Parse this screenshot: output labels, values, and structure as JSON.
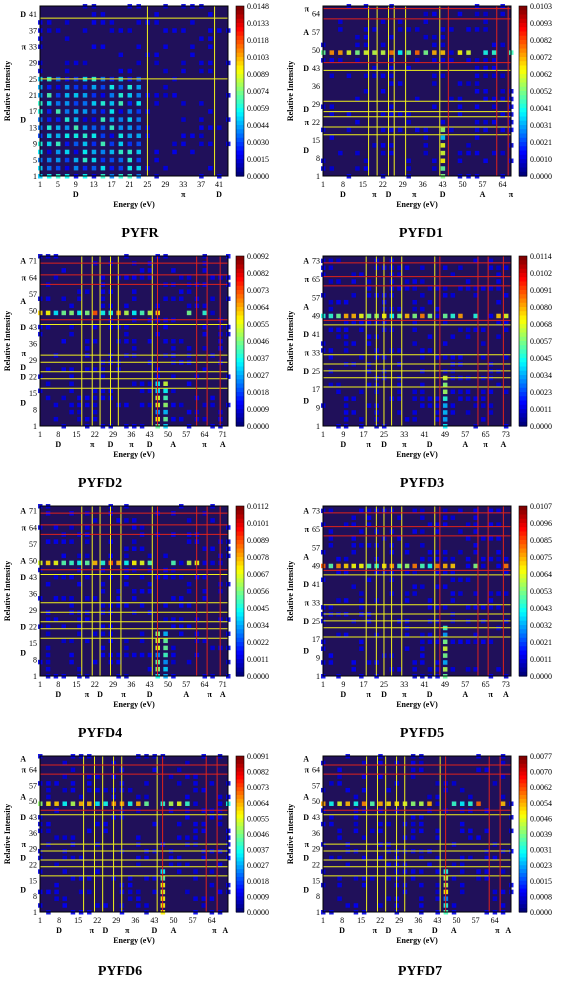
{
  "chart_data": [
    {
      "type": "heatmap",
      "panel": "PYFR",
      "title": "PYFR",
      "xlabel": "Energy (eV)",
      "ylabel": "Relative Intensity",
      "xlim": [
        1,
        43
      ],
      "ylim": [
        1,
        43
      ],
      "x_ticks": [
        "1",
        "5",
        "9",
        "13",
        "17",
        "21",
        "25",
        "29",
        "33",
        "37",
        "41"
      ],
      "y_ticks": [
        "1",
        "5",
        "9",
        "13",
        "17",
        "21",
        "25",
        "29",
        "33",
        "37",
        "41"
      ],
      "y_ticks_shown": [
        "1",
        "5",
        "9",
        "13",
        "17",
        "21",
        "25",
        "29",
        "33",
        "37",
        "41"
      ],
      "x_groups": [
        {
          "label": "D",
          "at": 9
        },
        {
          "label": "π",
          "at": 33
        },
        {
          "label": "D",
          "at": 41
        }
      ],
      "y_groups": [
        {
          "label": "D",
          "at": 15
        },
        {
          "label": "π",
          "at": 33
        },
        {
          "label": "D",
          "at": 41
        }
      ],
      "colorbar": [
        "0.0148",
        "0.0133",
        "0.0118",
        "0.0103",
        "0.0089",
        "0.0074",
        "0.0059",
        "0.0044",
        "0.0030",
        "0.0015",
        "0.0000"
      ],
      "grid_lines_yellow": [
        25,
        40
      ],
      "grid_lines_red": [],
      "hot_x": [
        1,
        24
      ]
    },
    {
      "type": "heatmap",
      "panel": "PYFD1",
      "title": "PYFD1",
      "xlabel": "Energy (eV)",
      "ylabel": "Relative Intensity",
      "xlim": [
        1,
        67
      ],
      "ylim": [
        1,
        67
      ],
      "x_ticks": [
        "1",
        "8",
        "15",
        "22",
        "29",
        "36",
        "43",
        "50",
        "57",
        "64"
      ],
      "y_ticks_shown": [
        "1",
        "8",
        "15",
        "22",
        "29",
        "36",
        "43",
        "50",
        "57",
        "64"
      ],
      "x_groups": [
        {
          "label": "D",
          "at": 8
        },
        {
          "label": "π",
          "at": 19
        },
        {
          "label": "D",
          "at": 24
        },
        {
          "label": "π",
          "at": 33
        },
        {
          "label": "D",
          "at": 43
        },
        {
          "label": "A",
          "at": 57
        },
        {
          "label": "π",
          "at": 67
        }
      ],
      "y_groups": [
        {
          "label": "D",
          "at": 11
        },
        {
          "label": "π",
          "at": 22
        },
        {
          "label": "D",
          "at": 27
        },
        {
          "label": "D",
          "at": 43
        },
        {
          "label": "A",
          "at": 57
        },
        {
          "label": "π",
          "at": 66
        }
      ],
      "colorbar": [
        "0.0103",
        "0.0093",
        "0.0082",
        "0.0072",
        "0.0062",
        "0.0052",
        "0.0041",
        "0.0031",
        "0.0021",
        "0.0010",
        "0.0000"
      ],
      "grid_lines_yellow": [
        17,
        20,
        24,
        26,
        30,
        42
      ],
      "grid_lines_red": [
        45,
        62,
        66
      ],
      "hot_y": [
        48,
        50
      ]
    },
    {
      "type": "heatmap",
      "panel": "PYFD2",
      "title": "PYFD2",
      "xlabel": "Energy (eV)",
      "ylabel": "Relative Intensity",
      "xlim": [
        1,
        73
      ],
      "ylim": [
        1,
        73
      ],
      "x_ticks": [
        "1",
        "8",
        "15",
        "22",
        "29",
        "36",
        "43",
        "50",
        "57",
        "64",
        "71"
      ],
      "y_ticks_shown": [
        "1",
        "8",
        "15",
        "22",
        "29",
        "36",
        "43",
        "50",
        "57",
        "64",
        "71"
      ],
      "x_groups": [
        {
          "label": "D",
          "at": 8
        },
        {
          "label": "π",
          "at": 21
        },
        {
          "label": "D",
          "at": 28
        },
        {
          "label": "π",
          "at": 36
        },
        {
          "label": "D",
          "at": 43
        },
        {
          "label": "A",
          "at": 52
        },
        {
          "label": "π",
          "at": 64
        },
        {
          "label": "A",
          "at": 71
        }
      ],
      "y_groups": [
        {
          "label": "D",
          "at": 11
        },
        {
          "label": "D",
          "at": 22
        },
        {
          "label": "D",
          "at": 26
        },
        {
          "label": "π",
          "at": 32
        },
        {
          "label": "D",
          "at": 43
        },
        {
          "label": "A",
          "at": 54
        },
        {
          "label": "π",
          "at": 64
        },
        {
          "label": "A",
          "at": 71
        }
      ],
      "colorbar": [
        "0.0092",
        "0.0082",
        "0.0073",
        "0.0064",
        "0.0055",
        "0.0046",
        "0.0037",
        "0.0027",
        "0.0018",
        "0.0009",
        "0.0000"
      ],
      "grid_lines_yellow": [
        17,
        21,
        24,
        28,
        31,
        44
      ],
      "grid_lines_red": [
        46,
        61,
        65,
        70
      ],
      "hot_y": [
        47,
        50
      ]
    },
    {
      "type": "heatmap",
      "panel": "PYFD3",
      "title": "PYFD3",
      "xlabel": "Energy (eV)",
      "ylabel": "Relative Intensity",
      "xlim": [
        1,
        75
      ],
      "ylim": [
        1,
        75
      ],
      "x_ticks": [
        "1",
        "9",
        "17",
        "25",
        "33",
        "41",
        "49",
        "57",
        "65",
        "73"
      ],
      "y_ticks_shown": [
        "1",
        "9",
        "17",
        "25",
        "33",
        "41",
        "49",
        "57",
        "65",
        "73"
      ],
      "x_groups": [
        {
          "label": "D",
          "at": 9
        },
        {
          "label": "π",
          "at": 19
        },
        {
          "label": "D",
          "at": 25
        },
        {
          "label": "π",
          "at": 33
        },
        {
          "label": "D",
          "at": 43
        },
        {
          "label": "A",
          "at": 57
        },
        {
          "label": "π",
          "at": 65
        },
        {
          "label": "A",
          "at": 72
        }
      ],
      "y_groups": [
        {
          "label": "D",
          "at": 12
        },
        {
          "label": "D",
          "at": 25
        },
        {
          "label": "π",
          "at": 33
        },
        {
          "label": "D",
          "at": 41
        },
        {
          "label": "A",
          "at": 53
        },
        {
          "label": "π",
          "at": 65
        },
        {
          "label": "A",
          "at": 73
        }
      ],
      "colorbar": [
        "0.0114",
        "0.0102",
        "0.0091",
        "0.0080",
        "0.0068",
        "0.0057",
        "0.0045",
        "0.0034",
        "0.0023",
        "0.0011",
        "0.0000"
      ],
      "grid_lines_yellow": [
        18,
        22,
        25,
        28,
        32,
        45
      ],
      "grid_lines_red": [
        47,
        62,
        66,
        72
      ],
      "hot_y": [
        48,
        50
      ]
    },
    {
      "type": "heatmap",
      "panel": "PYFD4",
      "title": "PYFD4",
      "xlabel": "Energy (eV)",
      "ylabel": "Relative Intensity",
      "xlim": [
        1,
        73
      ],
      "ylim": [
        1,
        73
      ],
      "x_ticks": [
        "1",
        "8",
        "15",
        "22",
        "29",
        "36",
        "43",
        "50",
        "57",
        "64",
        "71"
      ],
      "y_ticks_shown": [
        "1",
        "8",
        "15",
        "22",
        "29",
        "36",
        "43",
        "50",
        "57",
        "64",
        "71"
      ],
      "x_groups": [
        {
          "label": "D",
          "at": 8
        },
        {
          "label": "π",
          "at": 19
        },
        {
          "label": "D",
          "at": 24
        },
        {
          "label": "π",
          "at": 33
        },
        {
          "label": "D",
          "at": 43
        },
        {
          "label": "A",
          "at": 57
        },
        {
          "label": "π",
          "at": 66
        },
        {
          "label": "A",
          "at": 71
        }
      ],
      "y_groups": [
        {
          "label": "D",
          "at": 11
        },
        {
          "label": "D",
          "at": 22
        },
        {
          "label": "D",
          "at": 43
        },
        {
          "label": "A",
          "at": 50
        },
        {
          "label": "π",
          "at": 64
        },
        {
          "label": "A",
          "at": 71
        }
      ],
      "colorbar": [
        "0.0112",
        "0.0101",
        "0.0089",
        "0.0078",
        "0.0067",
        "0.0056",
        "0.0045",
        "0.0034",
        "0.0022",
        "0.0011",
        "0.0000"
      ],
      "grid_lines_yellow": [
        17,
        21,
        24,
        28,
        32,
        44
      ],
      "grid_lines_red": [
        46,
        61,
        65,
        70
      ],
      "hot_y": [
        48,
        51
      ]
    },
    {
      "type": "heatmap",
      "panel": "PYFD5",
      "title": "PYFD5",
      "xlabel": "Energy (eV)",
      "ylabel": "Relative Intensity",
      "xlim": [
        1,
        75
      ],
      "ylim": [
        1,
        75
      ],
      "x_ticks": [
        "1",
        "9",
        "17",
        "25",
        "33",
        "41",
        "49",
        "57",
        "65",
        "73"
      ],
      "y_ticks_shown": [
        "1",
        "9",
        "17",
        "25",
        "33",
        "41",
        "49",
        "57",
        "65",
        "73"
      ],
      "x_groups": [
        {
          "label": "D",
          "at": 9
        },
        {
          "label": "π",
          "at": 19
        },
        {
          "label": "D",
          "at": 25
        },
        {
          "label": "π",
          "at": 33
        },
        {
          "label": "D",
          "at": 43
        },
        {
          "label": "A",
          "at": 57
        },
        {
          "label": "π",
          "at": 67
        },
        {
          "label": "A",
          "at": 73
        }
      ],
      "y_groups": [
        {
          "label": "D",
          "at": 12
        },
        {
          "label": "D",
          "at": 25
        },
        {
          "label": "π",
          "at": 33
        },
        {
          "label": "D",
          "at": 41
        },
        {
          "label": "A",
          "at": 53
        },
        {
          "label": "π",
          "at": 65
        },
        {
          "label": "A",
          "at": 73
        }
      ],
      "colorbar": [
        "0.0107",
        "0.0096",
        "0.0085",
        "0.0075",
        "0.0064",
        "0.0053",
        "0.0043",
        "0.0032",
        "0.0021",
        "0.0011",
        "0.0000"
      ],
      "grid_lines_yellow": [
        18,
        22,
        25,
        28,
        32,
        45
      ],
      "grid_lines_red": [
        47,
        62,
        66,
        72
      ],
      "hot_y": [
        48,
        50
      ]
    },
    {
      "type": "heatmap",
      "panel": "PYFD6",
      "title": "PYFD6",
      "xlabel": "Energy (eV)",
      "ylabel": "Relative Intensity",
      "xlim": [
        1,
        70
      ],
      "ylim": [
        1,
        70
      ],
      "x_ticks": [
        "1",
        "8",
        "15",
        "22",
        "29",
        "36",
        "43",
        "50",
        "57",
        "64"
      ],
      "y_ticks_shown": [
        "1",
        "8",
        "15",
        "22",
        "29",
        "36",
        "43",
        "50",
        "57",
        "64"
      ],
      "x_groups": [
        {
          "label": "D",
          "at": 8
        },
        {
          "label": "π",
          "at": 20
        },
        {
          "label": "D",
          "at": 25
        },
        {
          "label": "π",
          "at": 33
        },
        {
          "label": "D",
          "at": 43
        },
        {
          "label": "A",
          "at": 50
        },
        {
          "label": "π",
          "at": 65
        },
        {
          "label": "A",
          "at": 69
        }
      ],
      "y_groups": [
        {
          "label": "D",
          "at": 11
        },
        {
          "label": "D",
          "at": 25
        },
        {
          "label": "π",
          "at": 31
        },
        {
          "label": "D",
          "at": 43
        },
        {
          "label": "A",
          "at": 52
        },
        {
          "label": "π",
          "at": 64
        },
        {
          "label": "A",
          "at": 69
        }
      ],
      "colorbar": [
        "0.0091",
        "0.0082",
        "0.0073",
        "0.0064",
        "0.0055",
        "0.0046",
        "0.0037",
        "0.0027",
        "0.0018",
        "0.0009",
        "0.0000"
      ],
      "grid_lines_yellow": [
        17,
        21,
        24,
        28,
        31,
        44
      ],
      "grid_lines_red": [
        46,
        62,
        66
      ],
      "hot_y": [
        48,
        51
      ]
    },
    {
      "type": "heatmap",
      "panel": "PYFD7",
      "title": "PYFD7",
      "xlabel": "Energy (eV)",
      "ylabel": "Relative Intensity",
      "xlim": [
        1,
        70
      ],
      "ylim": [
        1,
        70
      ],
      "x_ticks": [
        "1",
        "8",
        "15",
        "22",
        "29",
        "36",
        "43",
        "50",
        "57",
        "64"
      ],
      "y_ticks_shown": [
        "1",
        "8",
        "15",
        "22",
        "29",
        "36",
        "43",
        "50",
        "57",
        "64"
      ],
      "x_groups": [
        {
          "label": "D",
          "at": 8
        },
        {
          "label": "π",
          "at": 20
        },
        {
          "label": "D",
          "at": 25
        },
        {
          "label": "π",
          "at": 33
        },
        {
          "label": "D",
          "at": 42
        },
        {
          "label": "A",
          "at": 49
        },
        {
          "label": "π",
          "at": 65
        },
        {
          "label": "A",
          "at": 69
        }
      ],
      "y_groups": [
        {
          "label": "D",
          "at": 11
        },
        {
          "label": "D",
          "at": 25
        },
        {
          "label": "π",
          "at": 31
        },
        {
          "label": "D",
          "at": 43
        },
        {
          "label": "A",
          "at": 52
        },
        {
          "label": "π",
          "at": 64
        },
        {
          "label": "A",
          "at": 69
        }
      ],
      "colorbar": [
        "0.0077",
        "0.0070",
        "0.0062",
        "0.0054",
        "0.0046",
        "0.0039",
        "0.0031",
        "0.0023",
        "0.0015",
        "0.0008",
        "0.0000"
      ],
      "grid_lines_yellow": [
        17,
        21,
        24,
        28,
        31,
        44
      ],
      "grid_lines_red": [
        46,
        62,
        66
      ],
      "hot_y": [
        48,
        51
      ]
    }
  ],
  "colors": {
    "background": "#20105a",
    "grid_yellow": "#f2f21a",
    "grid_red": "#e0221a",
    "axis": "#000000"
  }
}
